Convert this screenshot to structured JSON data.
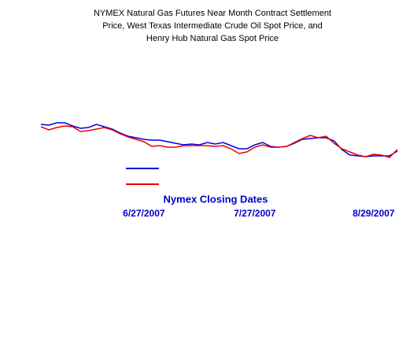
{
  "chart_data": {
    "type": "line",
    "title": [
      "NYMEX Natural Gas Futures Near Month Contract Settlement",
      "Price, West Texas Intermediate Crude Oil Spot Price, and",
      "Henry Hub Natural Gas Spot Price"
    ],
    "x_label": "Nymex Closing Dates",
    "categories": [
      null,
      null,
      null,
      null,
      null,
      null,
      null,
      null,
      null,
      null,
      null,
      null,
      null,
      "6/27/2007",
      null,
      null,
      null,
      null,
      null,
      null,
      null,
      null,
      null,
      null,
      null,
      null,
      null,
      "7/27/2007",
      null,
      null,
      null,
      null,
      null,
      null,
      null,
      null,
      null,
      null,
      null,
      null,
      null,
      null,
      "8/29/2007",
      null,
      null,
      null
    ],
    "ylim": [
      0,
      112
    ],
    "series": [
      {
        "color": "#0000dd",
        "values": [
          74,
          73,
          76,
          76,
          72,
          69,
          70,
          74,
          71,
          68,
          63,
          59,
          57,
          55,
          54,
          54,
          52,
          50,
          48,
          49,
          48,
          51,
          49,
          51,
          47,
          43,
          43,
          48,
          51,
          46,
          45,
          46,
          50,
          55,
          56,
          57,
          57,
          53,
          42,
          35,
          34,
          33,
          34,
          34,
          34,
          40
        ]
      },
      {
        "color": "#ee0000",
        "values": [
          71,
          67,
          70,
          72,
          71,
          65,
          66,
          68,
          70,
          67,
          62,
          58,
          55,
          52,
          46,
          47,
          45,
          45,
          47,
          47,
          47,
          47,
          46,
          47,
          43,
          37,
          39,
          45,
          48,
          45,
          45,
          46,
          51,
          56,
          60,
          57,
          59,
          50,
          43,
          39,
          35,
          33,
          36,
          35,
          32,
          42
        ]
      }
    ]
  }
}
